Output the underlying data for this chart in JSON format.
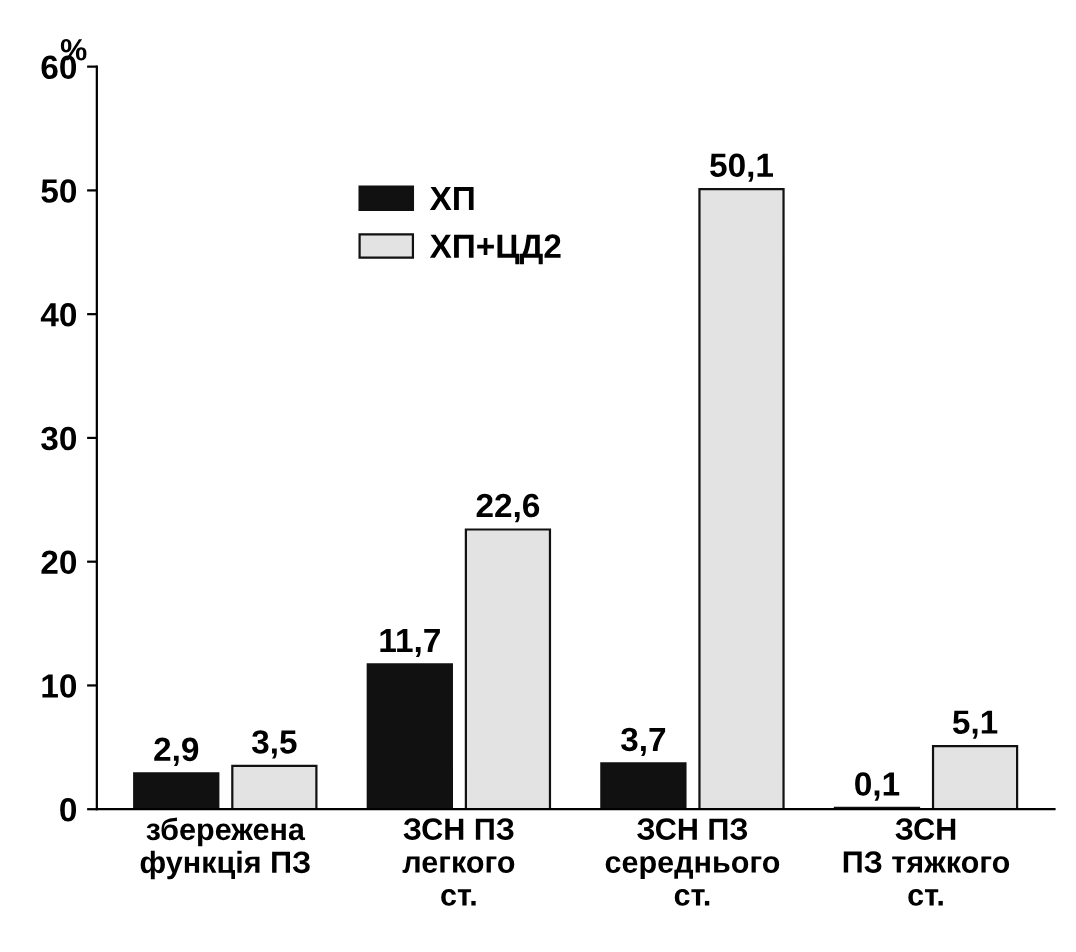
{
  "chart_data": {
    "type": "bar",
    "ylabel": "%",
    "categories": [
      "збережена\nфункція ПЗ",
      "ЗСН ПЗ\nлегкого\nст.",
      "ЗСН ПЗ\nсереднього\nст.",
      "ЗСН\nПЗ тяжкого\nст."
    ],
    "series": [
      {
        "name": "ХП",
        "color": "#111111",
        "values": [
          2.9,
          11.7,
          3.7,
          0.1
        ],
        "value_labels": [
          "2,9",
          "11,7",
          "3,7",
          "0,1"
        ]
      },
      {
        "name": "ХП+ЦД2",
        "color": "#e3e3e3",
        "values": [
          3.5,
          22.6,
          50.1,
          5.1
        ],
        "value_labels": [
          "3,5",
          "22,6",
          "50,1",
          "5,1"
        ]
      }
    ],
    "ylim": [
      0,
      60
    ],
    "yticks": [
      0,
      10,
      20,
      30,
      40,
      50,
      60
    ],
    "grid": false,
    "legend": "top"
  }
}
